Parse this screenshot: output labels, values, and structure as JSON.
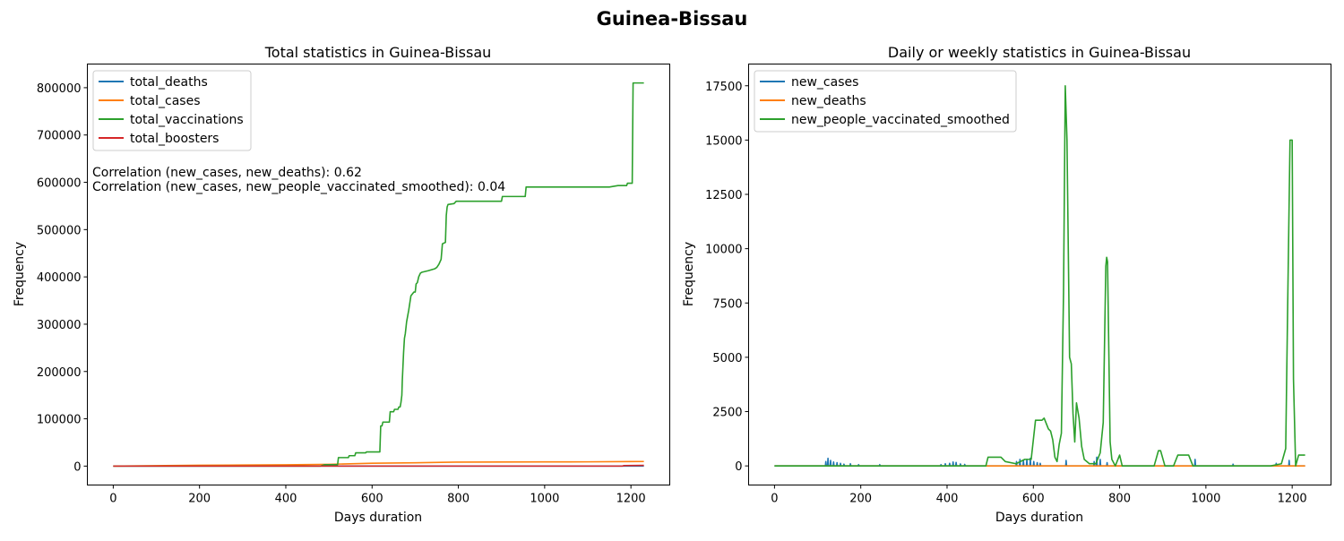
{
  "figure": {
    "suptitle": "Guinea-Bissau"
  },
  "chart_data": [
    {
      "type": "line",
      "title": "Total statistics in Guinea-Bissau",
      "xlabel": "Days duration",
      "ylabel": "Frequency",
      "xlim": [
        -60,
        1290
      ],
      "ylim": [
        -40000,
        850000
      ],
      "xticks": [
        0,
        200,
        400,
        600,
        800,
        1000,
        1200
      ],
      "yticks": [
        0,
        100000,
        200000,
        300000,
        400000,
        500000,
        600000,
        700000,
        800000
      ],
      "legend_position": "upper-left",
      "annotations": [
        "Correlation (new_cases, new_deaths): 0.62",
        "Correlation (new_cases, new_people_vaccinated_smoothed): 0.04"
      ],
      "series": [
        {
          "name": "total_deaths",
          "color": "#1f77b4",
          "points": [
            [
              0,
              0
            ],
            [
              300,
              40
            ],
            [
              600,
              120
            ],
            [
              900,
              160
            ],
            [
              1230,
              180
            ]
          ]
        },
        {
          "name": "total_cases",
          "color": "#ff7f0e",
          "points": [
            [
              0,
              0
            ],
            [
              120,
              1000
            ],
            [
              200,
              1800
            ],
            [
              300,
              2300
            ],
            [
              400,
              2800
            ],
            [
              500,
              3800
            ],
            [
              600,
              6000
            ],
            [
              700,
              7000
            ],
            [
              760,
              8000
            ],
            [
              800,
              8400
            ],
            [
              1000,
              8800
            ],
            [
              1100,
              9000
            ],
            [
              1200,
              9600
            ],
            [
              1230,
              9700
            ]
          ]
        },
        {
          "name": "total_vaccinations",
          "color": "#2ca02c",
          "points": [
            [
              0,
              0
            ],
            [
              480,
              0
            ],
            [
              490,
              3000
            ],
            [
              520,
              3000
            ],
            [
              522,
              18000
            ],
            [
              545,
              18000
            ],
            [
              547,
              22000
            ],
            [
              560,
              22000
            ],
            [
              562,
              28000
            ],
            [
              585,
              28000
            ],
            [
              587,
              30000
            ],
            [
              618,
              30000
            ],
            [
              620,
              85000
            ],
            [
              623,
              85000
            ],
            [
              625,
              93000
            ],
            [
              640,
              93000
            ],
            [
              642,
              115000
            ],
            [
              650,
              115000
            ],
            [
              652,
              120000
            ],
            [
              660,
              120000
            ],
            [
              662,
              125000
            ],
            [
              665,
              125000
            ],
            [
              667,
              135000
            ],
            [
              669,
              150000
            ],
            [
              670,
              180000
            ],
            [
              673,
              240000
            ],
            [
              675,
              270000
            ],
            [
              677,
              280000
            ],
            [
              680,
              305000
            ],
            [
              685,
              330000
            ],
            [
              690,
              360000
            ],
            [
              697,
              368000
            ],
            [
              700,
              368000
            ],
            [
              702,
              385000
            ],
            [
              705,
              388000
            ],
            [
              708,
              400000
            ],
            [
              712,
              408000
            ],
            [
              716,
              410000
            ],
            [
              730,
              413000
            ],
            [
              745,
              417000
            ],
            [
              750,
              420000
            ],
            [
              755,
              427000
            ],
            [
              760,
              437000
            ],
            [
              763,
              470000
            ],
            [
              770,
              473000
            ],
            [
              772,
              530000
            ],
            [
              774,
              548000
            ],
            [
              776,
              553000
            ],
            [
              790,
              555000
            ],
            [
              795,
              560000
            ],
            [
              900,
              560000
            ],
            [
              902,
              570000
            ],
            [
              955,
              570000
            ],
            [
              957,
              590000
            ],
            [
              1150,
              590000
            ],
            [
              1170,
              593000
            ],
            [
              1190,
              593000
            ],
            [
              1192,
              598000
            ],
            [
              1203,
              598000
            ],
            [
              1205,
              810000
            ],
            [
              1230,
              810000
            ]
          ]
        },
        {
          "name": "total_boosters",
          "color": "#d62728",
          "points": [
            [
              0,
              0
            ],
            [
              900,
              0
            ],
            [
              1000,
              0
            ],
            [
              1180,
              0
            ],
            [
              1183,
              1000
            ],
            [
              1230,
              1500
            ]
          ]
        }
      ]
    },
    {
      "type": "line",
      "title": "Daily or weekly statistics in Guinea-Bissau",
      "xlabel": "Days duration",
      "ylabel": "Frequency",
      "xlim": [
        -60,
        1290
      ],
      "ylim": [
        -880,
        18500
      ],
      "xticks": [
        0,
        200,
        400,
        600,
        800,
        1000,
        1200
      ],
      "yticks": [
        0,
        2500,
        5000,
        7500,
        10000,
        12500,
        15000,
        17500
      ],
      "legend_position": "upper-left",
      "series": [
        {
          "name": "new_cases",
          "color": "#1f77b4",
          "points": [
            [
              0,
              0
            ],
            [
              118,
              0
            ],
            [
              119,
              200
            ],
            [
              120,
              0
            ],
            [
              123,
              0
            ],
            [
              124,
              350
            ],
            [
              125,
              0
            ],
            [
              129,
              0
            ],
            [
              130,
              250
            ],
            [
              131,
              0
            ],
            [
              136,
              0
            ],
            [
              137,
              180
            ],
            [
              138,
              0
            ],
            [
              144,
              0
            ],
            [
              145,
              150
            ],
            [
              146,
              0
            ],
            [
              152,
              0
            ],
            [
              153,
              120
            ],
            [
              154,
              0
            ],
            [
              160,
              0
            ],
            [
              161,
              80
            ],
            [
              162,
              0
            ],
            [
              175,
              0
            ],
            [
              176,
              100
            ],
            [
              177,
              0
            ],
            [
              194,
              0
            ],
            [
              195,
              60
            ],
            [
              196,
              0
            ],
            [
              243,
              0
            ],
            [
              244,
              60
            ],
            [
              245,
              0
            ],
            [
              385,
              0
            ],
            [
              386,
              60
            ],
            [
              387,
              0
            ],
            [
              395,
              0
            ],
            [
              396,
              100
            ],
            [
              397,
              0
            ],
            [
              405,
              0
            ],
            [
              406,
              120
            ],
            [
              407,
              0
            ],
            [
              413,
              0
            ],
            [
              414,
              180
            ],
            [
              415,
              0
            ],
            [
              420,
              0
            ],
            [
              421,
              160
            ],
            [
              422,
              0
            ],
            [
              430,
              0
            ],
            [
              431,
              90
            ],
            [
              432,
              0
            ],
            [
              440,
              0
            ],
            [
              441,
              70
            ],
            [
              442,
              0
            ],
            [
              560,
              0
            ],
            [
              561,
              200
            ],
            [
              562,
              0
            ],
            [
              568,
              0
            ],
            [
              569,
              300
            ],
            [
              570,
              0
            ],
            [
              576,
              0
            ],
            [
              577,
              250
            ],
            [
              578,
              0
            ],
            [
              584,
              0
            ],
            [
              585,
              300
            ],
            [
              586,
              0
            ],
            [
              592,
              0
            ],
            [
              593,
              350
            ],
            [
              594,
              0
            ],
            [
              600,
              0
            ],
            [
              601,
              200
            ],
            [
              602,
              0
            ],
            [
              608,
              0
            ],
            [
              609,
              150
            ],
            [
              610,
              0
            ],
            [
              615,
              0
            ],
            [
              616,
              120
            ],
            [
              617,
              0
            ],
            [
              675,
              0
            ],
            [
              676,
              250
            ],
            [
              677,
              0
            ],
            [
              740,
              0
            ],
            [
              741,
              200
            ],
            [
              742,
              0
            ],
            [
              746,
              0
            ],
            [
              747,
              400
            ],
            [
              748,
              0
            ],
            [
              754,
              0
            ],
            [
              755,
              300
            ],
            [
              756,
              0
            ],
            [
              770,
              0
            ],
            [
              771,
              150
            ],
            [
              772,
              0
            ],
            [
              974,
              0
            ],
            [
              975,
              300
            ],
            [
              976,
              0
            ],
            [
              1062,
              0
            ],
            [
              1063,
              80
            ],
            [
              1064,
              0
            ],
            [
              1162,
              0
            ],
            [
              1163,
              120
            ],
            [
              1164,
              0
            ],
            [
              1192,
              0
            ],
            [
              1193,
              250
            ],
            [
              1194,
              0
            ],
            [
              1230,
              0
            ]
          ]
        },
        {
          "name": "new_deaths",
          "color": "#ff7f0e",
          "points": [
            [
              0,
              0
            ],
            [
              1230,
              0
            ]
          ]
        },
        {
          "name": "new_people_vaccinated_smoothed",
          "color": "#2ca02c",
          "points": [
            [
              0,
              0
            ],
            [
              490,
              0
            ],
            [
              495,
              400
            ],
            [
              525,
              400
            ],
            [
              535,
              200
            ],
            [
              560,
              100
            ],
            [
              580,
              300
            ],
            [
              595,
              300
            ],
            [
              600,
              1200
            ],
            [
              605,
              2100
            ],
            [
              620,
              2100
            ],
            [
              625,
              2200
            ],
            [
              635,
              1700
            ],
            [
              640,
              1600
            ],
            [
              645,
              1200
            ],
            [
              650,
              400
            ],
            [
              655,
              200
            ],
            [
              660,
              1000
            ],
            [
              665,
              1500
            ],
            [
              670,
              8000
            ],
            [
              674,
              17500
            ],
            [
              678,
              15000
            ],
            [
              684,
              5000
            ],
            [
              688,
              4700
            ],
            [
              692,
              2400
            ],
            [
              696,
              1100
            ],
            [
              700,
              2900
            ],
            [
              706,
              2200
            ],
            [
              712,
              900
            ],
            [
              718,
              300
            ],
            [
              730,
              100
            ],
            [
              745,
              100
            ],
            [
              755,
              600
            ],
            [
              762,
              2000
            ],
            [
              768,
              9200
            ],
            [
              770,
              9600
            ],
            [
              772,
              9400
            ],
            [
              778,
              1100
            ],
            [
              782,
              300
            ],
            [
              790,
              0
            ],
            [
              800,
              500
            ],
            [
              806,
              0
            ],
            [
              880,
              0
            ],
            [
              890,
              700
            ],
            [
              895,
              700
            ],
            [
              905,
              0
            ],
            [
              925,
              0
            ],
            [
              935,
              500
            ],
            [
              960,
              500
            ],
            [
              970,
              0
            ],
            [
              1150,
              0
            ],
            [
              1175,
              100
            ],
            [
              1185,
              800
            ],
            [
              1190,
              8000
            ],
            [
              1195,
              15000
            ],
            [
              1200,
              15000
            ],
            [
              1203,
              4000
            ],
            [
              1208,
              0
            ],
            [
              1215,
              500
            ],
            [
              1230,
              500
            ]
          ]
        }
      ]
    }
  ]
}
